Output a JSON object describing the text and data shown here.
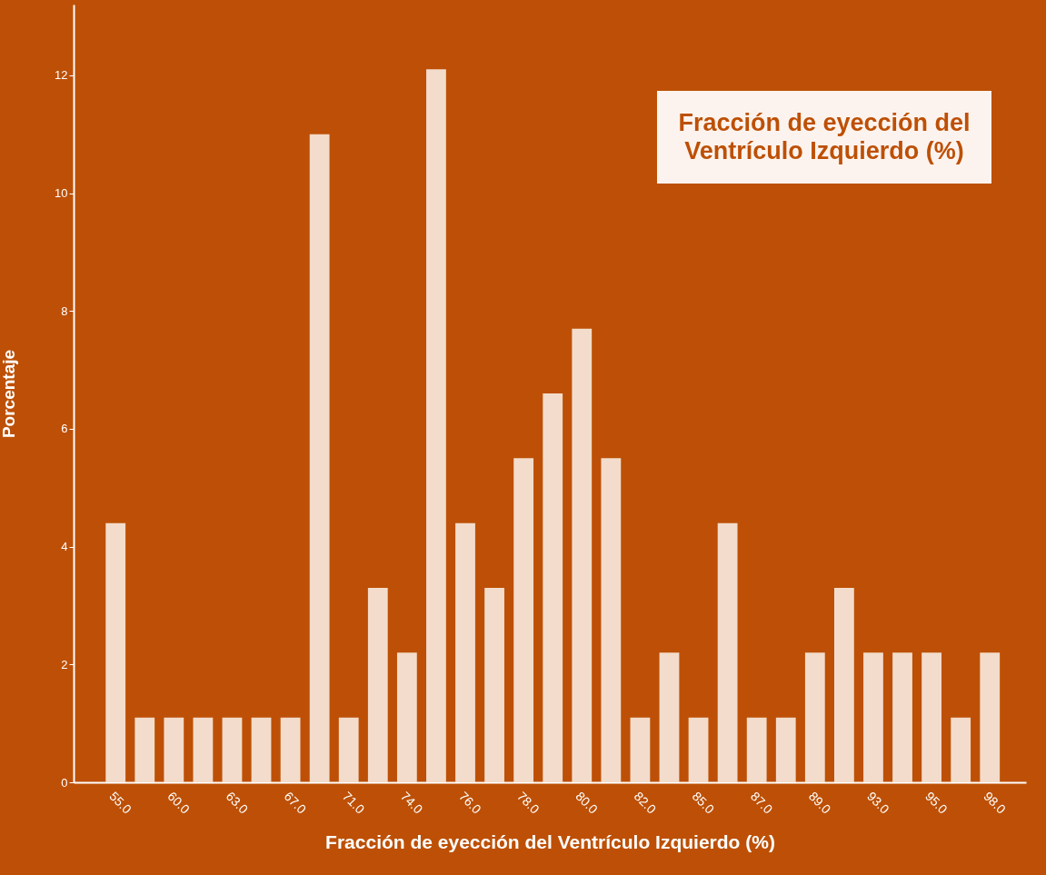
{
  "chart_data": {
    "type": "bar",
    "title": "Fracción de eyección del Ventrículo Izquierdo (%)",
    "xlabel": "Fracción de eyección del Ventrículo Izquierdo (%)",
    "ylabel": "Porcentaje",
    "categories": [
      "55.0",
      null,
      "60.0",
      null,
      "63.0",
      null,
      "67.0",
      null,
      "71.0",
      null,
      "74.0",
      null,
      "76.0",
      null,
      "78.0",
      null,
      "80.0",
      null,
      "82.0",
      null,
      "85.0",
      null,
      "87.0",
      null,
      "89.0",
      null,
      "93.0",
      null,
      "95.0",
      null,
      "98.0"
    ],
    "values": [
      4.4,
      1.1,
      1.1,
      1.1,
      1.1,
      1.1,
      1.1,
      11.0,
      1.1,
      3.3,
      2.2,
      12.1,
      4.4,
      3.3,
      5.5,
      6.6,
      7.7,
      5.5,
      1.1,
      2.2,
      1.1,
      4.4,
      1.1,
      1.1,
      2.2,
      3.3,
      2.2,
      2.2,
      2.2,
      1.1,
      2.2
    ],
    "color": "#f3dccb",
    "ylim": [
      0,
      13.2
    ],
    "yticks": [
      0,
      2,
      4,
      6,
      8,
      10,
      12
    ],
    "grid": false
  }
}
